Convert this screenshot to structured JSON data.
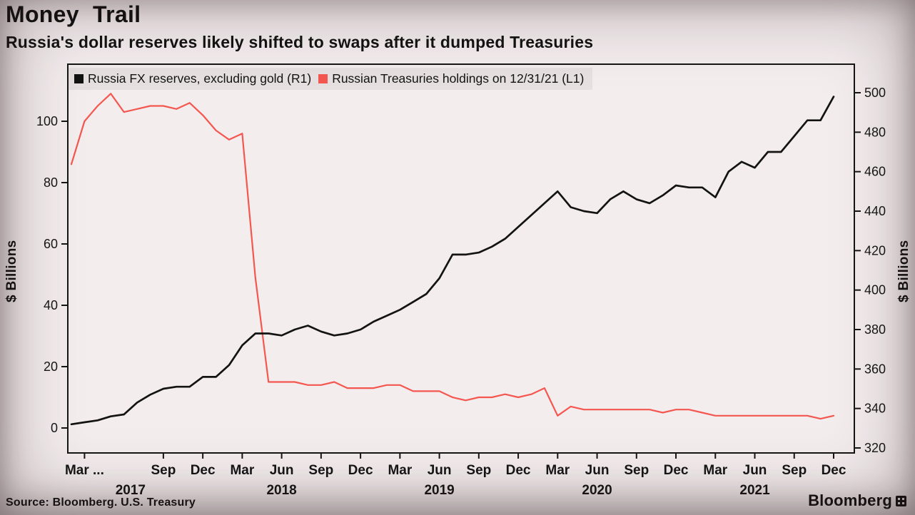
{
  "header": {
    "title": "Money Trail",
    "subtitle": "Russia's dollar reserves likely shifted to swaps after it dumped Treasuries"
  },
  "legend": [
    {
      "label": "Russia FX reserves, excluding gold (R1)",
      "color": "#131313"
    },
    {
      "label": "Russian Treasuries holdings on 12/31/21 (L1)",
      "color": "#f4574f"
    }
  ],
  "axes": {
    "left_label": "$ Billions",
    "right_label": "$ Billions"
  },
  "footer": {
    "source": "Source: Bloomberg. U.S. Treasury",
    "brand": "Bloomberg"
  },
  "chart_data": {
    "type": "line",
    "title": "Money Trail",
    "subtitle": "Russia's dollar reserves likely shifted to swaps after it dumped Treasuries",
    "x_unit": "month",
    "x_start": "2017-02",
    "x_end": "2021-12",
    "grid": false,
    "legend_position": "top-left-inside",
    "left_axis": {
      "label": "$ Billions",
      "ticks": [
        0,
        20,
        40,
        60,
        80,
        100
      ],
      "ylim": [
        -8,
        118
      ]
    },
    "right_axis": {
      "label": "$ Billions",
      "ticks": [
        320,
        340,
        360,
        380,
        400,
        420,
        440,
        460,
        480,
        500
      ],
      "ylim": [
        318,
        514
      ]
    },
    "x_ticks": [
      {
        "label": "Mar ...",
        "idx": 1
      },
      {
        "label": "Sep",
        "idx": 7
      },
      {
        "label": "Dec",
        "idx": 10
      },
      {
        "label": "Mar",
        "idx": 13
      },
      {
        "label": "Jun",
        "idx": 16
      },
      {
        "label": "Sep",
        "idx": 19
      },
      {
        "label": "Dec",
        "idx": 22
      },
      {
        "label": "Mar",
        "idx": 25
      },
      {
        "label": "Jun",
        "idx": 28
      },
      {
        "label": "Sep",
        "idx": 31
      },
      {
        "label": "Dec",
        "idx": 34
      },
      {
        "label": "Mar",
        "idx": 37
      },
      {
        "label": "Jun",
        "idx": 40
      },
      {
        "label": "Sep",
        "idx": 43
      },
      {
        "label": "Dec",
        "idx": 46
      },
      {
        "label": "Mar",
        "idx": 49
      },
      {
        "label": "Jun",
        "idx": 52
      },
      {
        "label": "Sep",
        "idx": 55
      },
      {
        "label": "Dec",
        "idx": 58
      }
    ],
    "year_labels": [
      {
        "label": "2017",
        "idx": 4.5
      },
      {
        "label": "2018",
        "idx": 16
      },
      {
        "label": "2019",
        "idx": 28
      },
      {
        "label": "2020",
        "idx": 40
      },
      {
        "label": "2021",
        "idx": 52
      }
    ],
    "series": [
      {
        "name": "Russia FX reserves, excluding gold (R1)",
        "axis": "right",
        "color": "#131313",
        "values": [
          332,
          333,
          334,
          336,
          337,
          343,
          347,
          350,
          351,
          351,
          356,
          356,
          362,
          372,
          378,
          378,
          377,
          380,
          382,
          379,
          377,
          378,
          380,
          384,
          387,
          390,
          394,
          398,
          406,
          418,
          418,
          419,
          422,
          426,
          432,
          438,
          444,
          450,
          442,
          440,
          439,
          446,
          450,
          446,
          444,
          448,
          453,
          452,
          452,
          447,
          460,
          465,
          462,
          470,
          470,
          478,
          486,
          486,
          498
        ]
      },
      {
        "name": "Russian Treasuries holdings on 12/31/21 (L1)",
        "axis": "left",
        "color": "#f4574f",
        "values": [
          86,
          100,
          105,
          109,
          103,
          104,
          105,
          105,
          104,
          106,
          102,
          97,
          94,
          96,
          49,
          15,
          15,
          15,
          14,
          14,
          15,
          13,
          13,
          13,
          14,
          14,
          12,
          12,
          12,
          10,
          9,
          10,
          10,
          11,
          10,
          11,
          13,
          4,
          7,
          6,
          6,
          6,
          6,
          6,
          6,
          5,
          6,
          6,
          5,
          4,
          4,
          4,
          4,
          4,
          4,
          4,
          4,
          3,
          4
        ]
      }
    ]
  }
}
